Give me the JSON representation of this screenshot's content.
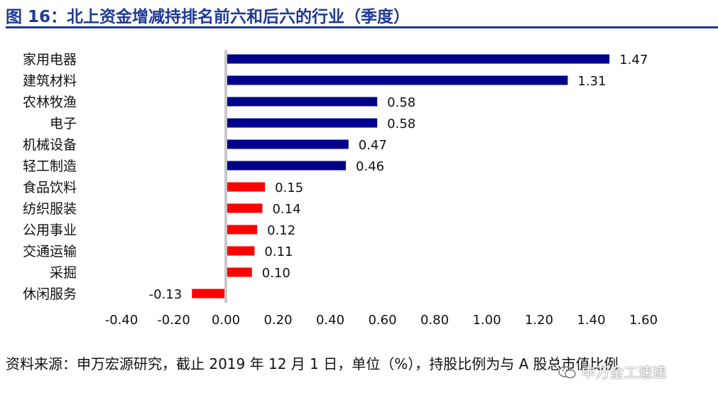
{
  "header": {
    "title": "图 16：北上资金增减持排名前六和后六的行业（季度）"
  },
  "footer": {
    "source_note": "资料来源：申万宏源研究，截止 2019 年 12 月 1 日，单位（%），持股比例为与 A 股总市值比例",
    "watermark": "申万金工速递"
  },
  "colors": {
    "title": "#1f3a93",
    "positive_top": "#00008b",
    "positive_bottom": "#ff0000",
    "negative": "#ff0000",
    "zero_line": "#c8c8c8"
  },
  "chart_data": {
    "type": "bar",
    "orientation": "horizontal",
    "title": "",
    "xlabel": "",
    "ylabel": "",
    "xlim": [
      -0.4,
      1.6
    ],
    "x_ticks": [
      "-0.40",
      "-0.20",
      "0.00",
      "0.20",
      "0.40",
      "0.60",
      "0.80",
      "1.00",
      "1.20",
      "1.40",
      "1.60"
    ],
    "grid": false,
    "legend": "none",
    "categories": [
      "家用电器",
      "建筑材料",
      "农林牧渔",
      "电子",
      "机械设备",
      "轻工制造",
      "食品饮料",
      "纺织服装",
      "公用事业",
      "交通运输",
      "采掘",
      "休闲服务"
    ],
    "values": [
      1.47,
      1.31,
      0.58,
      0.58,
      0.47,
      0.46,
      0.15,
      0.14,
      0.12,
      0.11,
      0.1,
      -0.13
    ],
    "value_labels": [
      "1.47",
      "1.31",
      "0.58",
      "0.58",
      "0.47",
      "0.46",
      "0.15",
      "0.14",
      "0.12",
      "0.11",
      "0.10",
      "-0.13"
    ],
    "bar_colors": [
      "#00008b",
      "#00008b",
      "#00008b",
      "#00008b",
      "#00008b",
      "#00008b",
      "#ff0000",
      "#ff0000",
      "#ff0000",
      "#ff0000",
      "#ff0000",
      "#ff0000"
    ]
  }
}
